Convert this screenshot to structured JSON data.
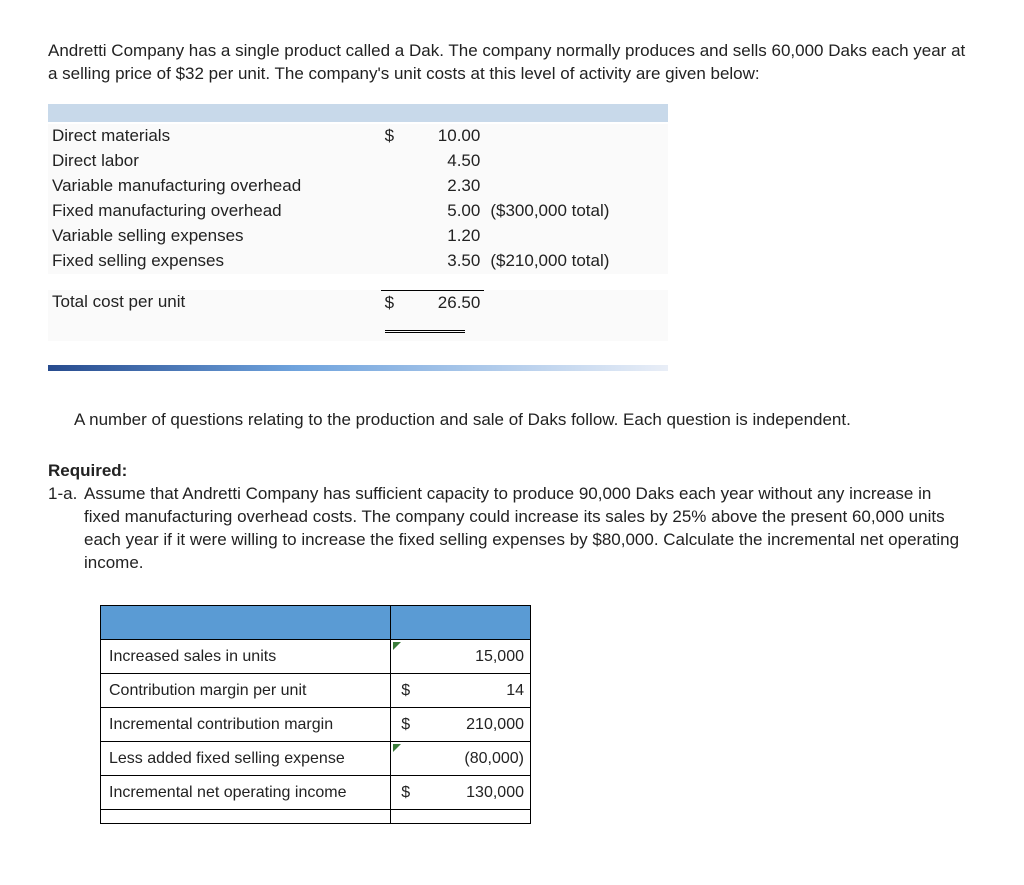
{
  "intro_text": "Andretti Company has a single product called a Dak. The company normally produces and sells 60,000 Daks each year at a selling price of $32 per unit. The company's unit costs at this level of activity are given below:",
  "cost_items": [
    {
      "label": "Direct materials",
      "currency": "$",
      "value": "10.00",
      "note": ""
    },
    {
      "label": "Direct labor",
      "currency": "",
      "value": "4.50",
      "note": ""
    },
    {
      "label": "Variable manufacturing overhead",
      "currency": "",
      "value": "2.30",
      "note": ""
    },
    {
      "label": "Fixed manufacturing overhead",
      "currency": "",
      "value": "5.00",
      "note": "($300,000 total)"
    },
    {
      "label": "Variable selling expenses",
      "currency": "",
      "value": "1.20",
      "note": ""
    },
    {
      "label": "Fixed selling expenses",
      "currency": "",
      "value": "3.50",
      "note": "($210,000 total)"
    }
  ],
  "total_cost": {
    "label": "Total cost per unit",
    "currency": "$",
    "value": "26.50"
  },
  "independent_note": "A number of questions relating to the production and sale of Daks follow. Each question is independent.",
  "required_label": "Required:",
  "question_number": "1-a.",
  "question_text": "Assume that Andretti Company has sufficient capacity to produce 90,000 Daks each year without any increase in fixed manufacturing overhead costs. The company could increase its sales by 25% above the present 60,000 units each year if it were willing to increase the fixed selling expenses by $80,000. Calculate the incremental net operating income.",
  "answer_rows": [
    {
      "label": "Increased sales in units",
      "symbol": "",
      "value": "15,000",
      "marker": true
    },
    {
      "label": "Contribution margin per unit",
      "symbol": "$",
      "value": "14",
      "marker": false
    },
    {
      "label": "Incremental contribution margin",
      "symbol": "$",
      "value": "210,000",
      "marker": false
    },
    {
      "label": "Less added fixed selling expense",
      "symbol": "",
      "value": "(80,000)",
      "marker": true
    },
    {
      "label": "Incremental net operating income",
      "symbol": "$",
      "value": "130,000",
      "marker": false
    }
  ],
  "colors": {
    "header_blue": "#5a9bd4",
    "highlight_blue": "#c8d9ea"
  }
}
